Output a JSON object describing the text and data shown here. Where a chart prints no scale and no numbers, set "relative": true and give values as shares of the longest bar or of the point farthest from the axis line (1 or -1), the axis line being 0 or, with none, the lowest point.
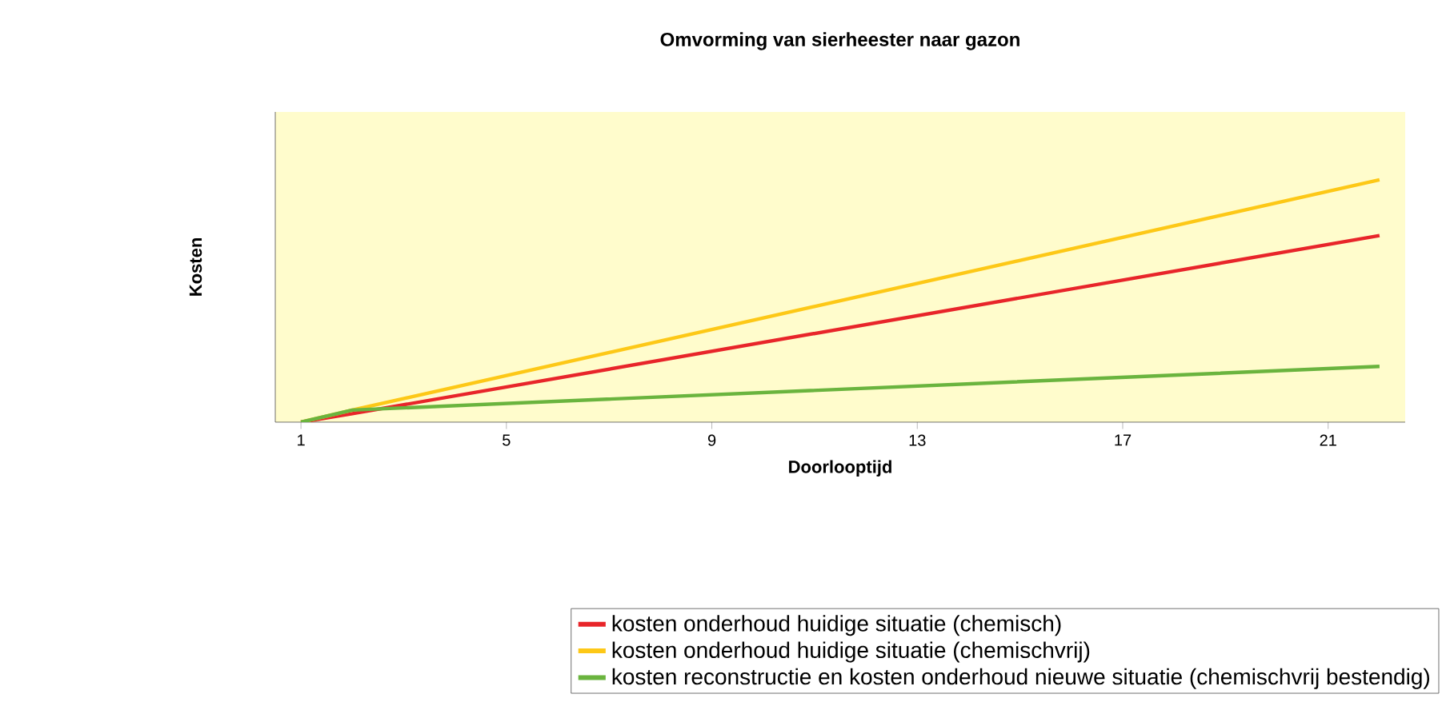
{
  "chart_data": {
    "type": "line",
    "title": "Omvorming van sierheester naar gazon",
    "xlabel": "Doorlooptijd",
    "ylabel": "Kosten",
    "relative": true,
    "xlim": [
      0.5,
      22.5
    ],
    "xticks": [
      1,
      5,
      9,
      13,
      17,
      21
    ],
    "tick_labels": "x",
    "legend": "bottom right",
    "marker": "none",
    "line_style": "solid",
    "series": [
      {
        "name": "kosten onderhoud huidige situatie (chemisch)",
        "color": "#e8252a",
        "x": [
          1,
          2,
          22
        ],
        "values": [
          0,
          0.035,
          0.77
        ]
      },
      {
        "name": "kosten onderhoud huidige situatie (chemischvrij)",
        "color": "#fdc817",
        "x": [
          1,
          2,
          22
        ],
        "values": [
          0,
          0.05,
          1
        ]
      },
      {
        "name": "kosten reconstructie en kosten onderhoud nieuwe situatie  (chemischvrij bestendig)",
        "color": "#6ab43e",
        "x": [
          1,
          2,
          22
        ],
        "values": [
          0,
          0.05,
          0.23
        ]
      }
    ]
  }
}
